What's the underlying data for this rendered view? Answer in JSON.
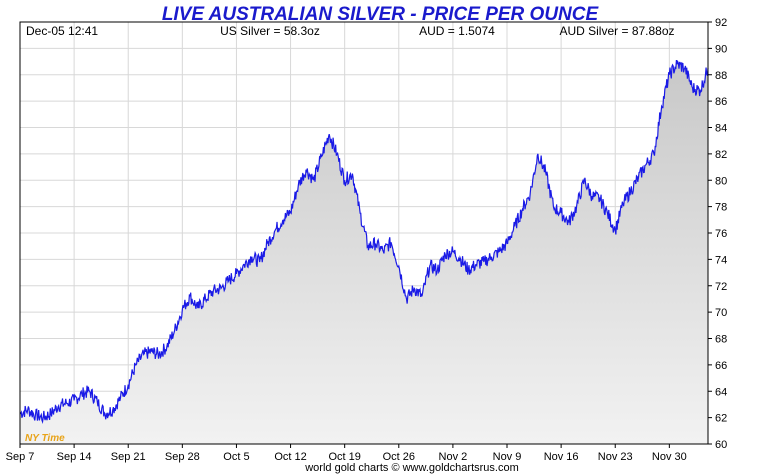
{
  "header": {
    "title": "LIVE AUSTRALIAN SILVER - PRICE PER OUNCE",
    "timestamp": "Dec-05  12:41",
    "us_silver": "US Silver = 58.3oz",
    "aud_rate": "AUD = 1.5074",
    "aud_silver": "AUD Silver = 87.88oz"
  },
  "footer": {
    "credit": "world gold charts © www.goldchartsrus.com",
    "timezone": "NY Time"
  },
  "colors": {
    "line": "#1a1ae6",
    "fill_top": "#c8c8c8",
    "fill_bottom": "#f2f2f2",
    "grid": "#d8d8d8",
    "title": "#1a1acc"
  },
  "chart_data": {
    "type": "area",
    "title": "LIVE AUSTRALIAN SILVER - PRICE PER OUNCE",
    "xlabel": "",
    "ylabel": "",
    "ylim": [
      60,
      92
    ],
    "yticks": [
      60,
      62,
      64,
      66,
      68,
      70,
      72,
      74,
      76,
      78,
      80,
      82,
      84,
      86,
      88,
      90,
      92
    ],
    "xlim": [
      "2025-09-07",
      "2025-12-05"
    ],
    "xticks": [
      {
        "label": "Sep 7",
        "date": "2025-09-07"
      },
      {
        "label": "Sep 14",
        "date": "2025-09-14"
      },
      {
        "label": "Sep 21",
        "date": "2025-09-21"
      },
      {
        "label": "Sep 28",
        "date": "2025-09-28"
      },
      {
        "label": "Oct 5",
        "date": "2025-10-05"
      },
      {
        "label": "Oct 12",
        "date": "2025-10-12"
      },
      {
        "label": "Oct 19",
        "date": "2025-10-19"
      },
      {
        "label": "Oct 26",
        "date": "2025-10-26"
      },
      {
        "label": "Nov 2",
        "date": "2025-11-02"
      },
      {
        "label": "Nov 9",
        "date": "2025-11-09"
      },
      {
        "label": "Nov 16",
        "date": "2025-11-16"
      },
      {
        "label": "Nov 23",
        "date": "2025-11-23"
      },
      {
        "label": "Nov 30",
        "date": "2025-11-30"
      }
    ],
    "grid": true,
    "series": [
      {
        "points": [
          [
            "2025-09-07",
            62.3
          ],
          [
            "2025-09-08",
            62.6
          ],
          [
            "2025-09-09",
            62.2
          ],
          [
            "2025-09-10",
            62.0
          ],
          [
            "2025-09-11",
            62.3
          ],
          [
            "2025-09-12",
            62.9
          ],
          [
            "2025-09-13",
            63.1
          ],
          [
            "2025-09-14",
            63.3
          ],
          [
            "2025-09-15",
            63.8
          ],
          [
            "2025-09-16",
            64.0
          ],
          [
            "2025-09-17",
            63.2
          ],
          [
            "2025-09-18",
            62.3
          ],
          [
            "2025-09-19",
            62.6
          ],
          [
            "2025-09-20",
            63.5
          ],
          [
            "2025-09-21",
            64.5
          ],
          [
            "2025-09-22",
            66.0
          ],
          [
            "2025-09-23",
            66.8
          ],
          [
            "2025-09-24",
            67.0
          ],
          [
            "2025-09-25",
            66.8
          ],
          [
            "2025-09-26",
            67.4
          ],
          [
            "2025-09-27",
            68.6
          ],
          [
            "2025-09-28",
            70.2
          ],
          [
            "2025-09-29",
            71.2
          ],
          [
            "2025-09-30",
            70.3
          ],
          [
            "2025-10-01",
            71.0
          ],
          [
            "2025-10-02",
            71.6
          ],
          [
            "2025-10-03",
            71.8
          ],
          [
            "2025-10-04",
            72.4
          ],
          [
            "2025-10-05",
            72.9
          ],
          [
            "2025-10-06",
            73.6
          ],
          [
            "2025-10-07",
            74.2
          ],
          [
            "2025-10-08",
            73.8
          ],
          [
            "2025-10-09",
            75.2
          ],
          [
            "2025-10-10",
            76.2
          ],
          [
            "2025-10-11",
            77.0
          ],
          [
            "2025-10-12",
            77.6
          ],
          [
            "2025-10-13",
            79.6
          ],
          [
            "2025-10-14",
            80.8
          ],
          [
            "2025-10-15",
            80.0
          ],
          [
            "2025-10-16",
            81.8
          ],
          [
            "2025-10-17",
            83.5
          ],
          [
            "2025-10-18",
            82.0
          ],
          [
            "2025-10-19",
            80.0
          ],
          [
            "2025-10-20",
            80.5
          ],
          [
            "2025-10-21",
            77.5
          ],
          [
            "2025-10-22",
            75.0
          ],
          [
            "2025-10-23",
            75.2
          ],
          [
            "2025-10-24",
            74.6
          ],
          [
            "2025-10-25",
            75.3
          ],
          [
            "2025-10-26",
            73.5
          ],
          [
            "2025-10-27",
            71.0
          ],
          [
            "2025-10-28",
            71.8
          ],
          [
            "2025-10-29",
            71.2
          ],
          [
            "2025-10-30",
            73.5
          ],
          [
            "2025-10-31",
            73.2
          ],
          [
            "2025-11-01",
            74.4
          ],
          [
            "2025-11-02",
            74.6
          ],
          [
            "2025-11-03",
            74.0
          ],
          [
            "2025-11-04",
            73.2
          ],
          [
            "2025-11-05",
            73.6
          ],
          [
            "2025-11-06",
            73.8
          ],
          [
            "2025-11-07",
            74.2
          ],
          [
            "2025-11-08",
            74.6
          ],
          [
            "2025-11-09",
            75.2
          ],
          [
            "2025-11-10",
            76.5
          ],
          [
            "2025-11-11",
            77.8
          ],
          [
            "2025-11-12",
            79.0
          ],
          [
            "2025-11-13",
            82.0
          ],
          [
            "2025-11-14",
            80.6
          ],
          [
            "2025-11-15",
            78.0
          ],
          [
            "2025-11-16",
            77.5
          ],
          [
            "2025-11-17",
            76.8
          ],
          [
            "2025-11-18",
            78.0
          ],
          [
            "2025-11-19",
            80.0
          ],
          [
            "2025-11-20",
            78.8
          ],
          [
            "2025-11-21",
            78.6
          ],
          [
            "2025-11-22",
            77.5
          ],
          [
            "2025-11-23",
            76.2
          ],
          [
            "2025-11-24",
            78.2
          ],
          [
            "2025-11-25",
            79.2
          ],
          [
            "2025-11-26",
            80.2
          ],
          [
            "2025-11-27",
            81.2
          ],
          [
            "2025-11-28",
            82.0
          ],
          [
            "2025-11-29",
            85.6
          ],
          [
            "2025-11-30",
            88.0
          ],
          [
            "2025-12-01",
            88.8
          ],
          [
            "2025-12-02",
            88.5
          ],
          [
            "2025-12-03",
            87.0
          ],
          [
            "2025-12-04",
            86.8
          ],
          [
            "2025-12-05",
            88.5
          ]
        ]
      }
    ]
  }
}
